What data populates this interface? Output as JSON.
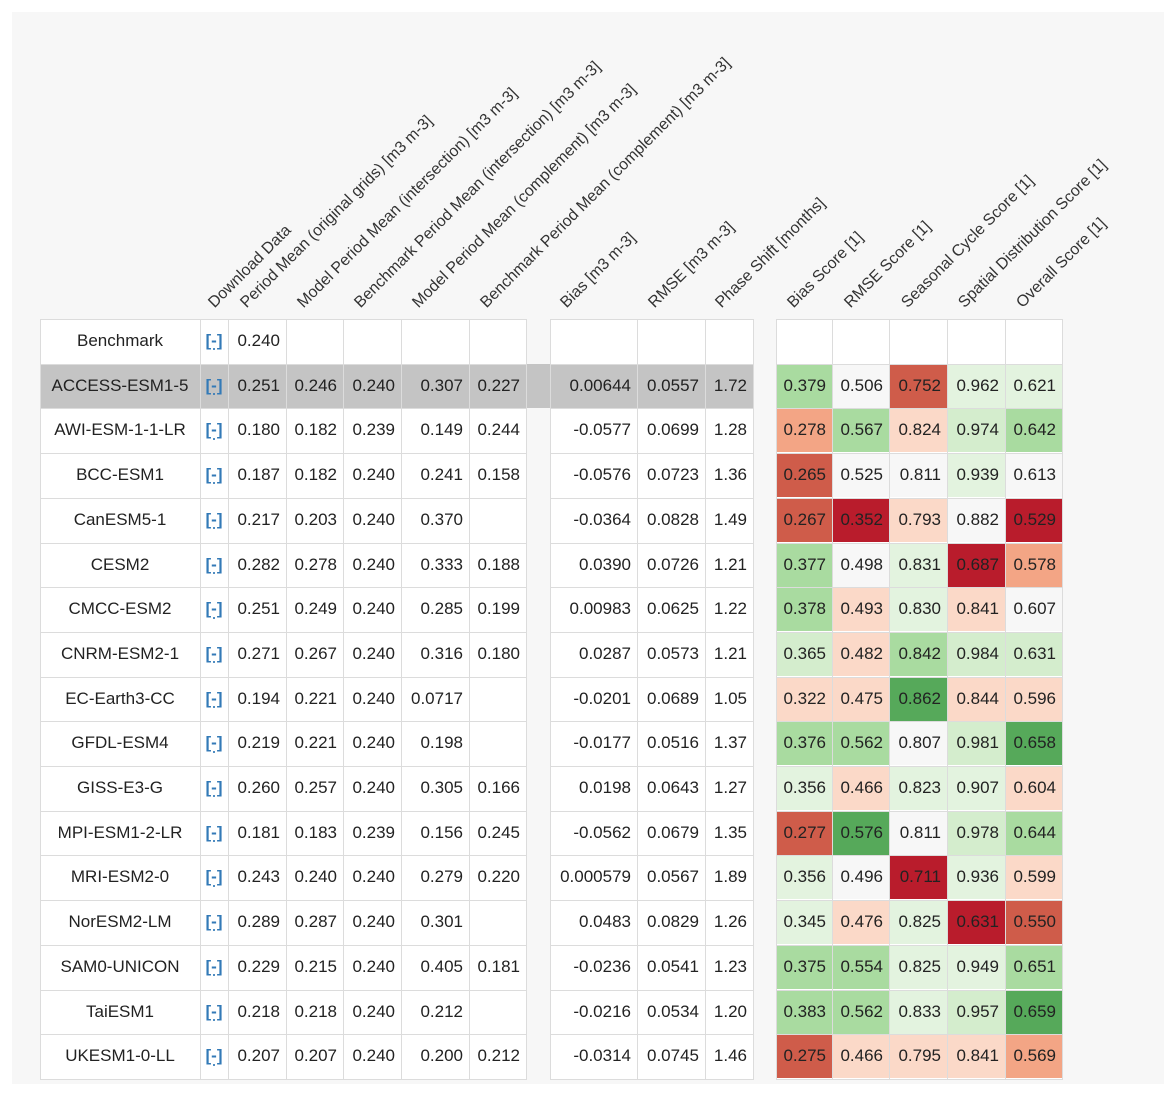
{
  "headers": [
    "Download Data",
    "Period Mean (original grids) [m3 m-3]",
    "Model Period Mean (intersection) [m3 m-3]",
    "Benchmark Period Mean (intersection) [m3 m-3]",
    "Model Period Mean (complement) [m3 m-3]",
    "Benchmark Period Mean (complement) [m3 m-3]",
    "Bias [m3 m-3]",
    "RMSE [m3 m-3]",
    "Phase Shift [months]",
    "Bias Score [1]",
    "RMSE Score [1]",
    "Seasonal Cycle Score [1]",
    "Spatial Distribution Score [1]",
    "Overall Score [1]"
  ],
  "download_label": "[-]",
  "benchmark": {
    "name": "Benchmark",
    "period_mean": "0.240"
  },
  "selected_row": 0,
  "rows": [
    {
      "model": "ACCESS-ESM1-5",
      "v": [
        "0.251",
        "0.246",
        "0.240",
        "0.307",
        "0.227",
        "0.00644",
        "0.0557",
        "1.72"
      ],
      "s": [
        "0.379",
        "0.506",
        "0.752",
        "0.962",
        "0.621"
      ]
    },
    {
      "model": "AWI-ESM-1-1-LR",
      "v": [
        "0.180",
        "0.182",
        "0.239",
        "0.149",
        "0.244",
        "-0.0577",
        "0.0699",
        "1.28"
      ],
      "s": [
        "0.278",
        "0.567",
        "0.824",
        "0.974",
        "0.642"
      ]
    },
    {
      "model": "BCC-ESM1",
      "v": [
        "0.187",
        "0.182",
        "0.240",
        "0.241",
        "0.158",
        "-0.0576",
        "0.0723",
        "1.36"
      ],
      "s": [
        "0.265",
        "0.525",
        "0.811",
        "0.939",
        "0.613"
      ]
    },
    {
      "model": "CanESM5-1",
      "v": [
        "0.217",
        "0.203",
        "0.240",
        "0.370",
        "",
        "-0.0364",
        "0.0828",
        "1.49"
      ],
      "s": [
        "0.267",
        "0.352",
        "0.793",
        "0.882",
        "0.529"
      ]
    },
    {
      "model": "CESM2",
      "v": [
        "0.282",
        "0.278",
        "0.240",
        "0.333",
        "0.188",
        "0.0390",
        "0.0726",
        "1.21"
      ],
      "s": [
        "0.377",
        "0.498",
        "0.831",
        "0.687",
        "0.578"
      ]
    },
    {
      "model": "CMCC-ESM2",
      "v": [
        "0.251",
        "0.249",
        "0.240",
        "0.285",
        "0.199",
        "0.00983",
        "0.0625",
        "1.22"
      ],
      "s": [
        "0.378",
        "0.493",
        "0.830",
        "0.841",
        "0.607"
      ]
    },
    {
      "model": "CNRM-ESM2-1",
      "v": [
        "0.271",
        "0.267",
        "0.240",
        "0.316",
        "0.180",
        "0.0287",
        "0.0573",
        "1.21"
      ],
      "s": [
        "0.365",
        "0.482",
        "0.842",
        "0.984",
        "0.631"
      ]
    },
    {
      "model": "EC-Earth3-CC",
      "v": [
        "0.194",
        "0.221",
        "0.240",
        "0.0717",
        "",
        "-0.0201",
        "0.0689",
        "1.05"
      ],
      "s": [
        "0.322",
        "0.475",
        "0.862",
        "0.844",
        "0.596"
      ]
    },
    {
      "model": "GFDL-ESM4",
      "v": [
        "0.219",
        "0.221",
        "0.240",
        "0.198",
        "",
        "-0.0177",
        "0.0516",
        "1.37"
      ],
      "s": [
        "0.376",
        "0.562",
        "0.807",
        "0.981",
        "0.658"
      ]
    },
    {
      "model": "GISS-E3-G",
      "v": [
        "0.260",
        "0.257",
        "0.240",
        "0.305",
        "0.166",
        "0.0198",
        "0.0643",
        "1.27"
      ],
      "s": [
        "0.356",
        "0.466",
        "0.823",
        "0.907",
        "0.604"
      ]
    },
    {
      "model": "MPI-ESM1-2-LR",
      "v": [
        "0.181",
        "0.183",
        "0.239",
        "0.156",
        "0.245",
        "-0.0562",
        "0.0679",
        "1.35"
      ],
      "s": [
        "0.277",
        "0.576",
        "0.811",
        "0.978",
        "0.644"
      ]
    },
    {
      "model": "MRI-ESM2-0",
      "v": [
        "0.243",
        "0.240",
        "0.240",
        "0.279",
        "0.220",
        "0.000579",
        "0.0567",
        "1.89"
      ],
      "s": [
        "0.356",
        "0.496",
        "0.711",
        "0.936",
        "0.599"
      ]
    },
    {
      "model": "NorESM2-LM",
      "v": [
        "0.289",
        "0.287",
        "0.240",
        "0.301",
        "",
        "0.0483",
        "0.0829",
        "1.26"
      ],
      "s": [
        "0.345",
        "0.476",
        "0.825",
        "0.631",
        "0.550"
      ]
    },
    {
      "model": "SAM0-UNICON",
      "v": [
        "0.229",
        "0.215",
        "0.240",
        "0.405",
        "0.181",
        "-0.0236",
        "0.0541",
        "1.23"
      ],
      "s": [
        "0.375",
        "0.554",
        "0.825",
        "0.949",
        "0.651"
      ]
    },
    {
      "model": "TaiESM1",
      "v": [
        "0.218",
        "0.218",
        "0.240",
        "0.212",
        "",
        "-0.0216",
        "0.0534",
        "1.20"
      ],
      "s": [
        "0.383",
        "0.562",
        "0.833",
        "0.957",
        "0.659"
      ]
    },
    {
      "model": "UKESM1-0-LL",
      "v": [
        "0.207",
        "0.207",
        "0.240",
        "0.200",
        "0.212",
        "-0.0314",
        "0.0745",
        "1.46"
      ],
      "s": [
        "0.275",
        "0.466",
        "0.795",
        "0.841",
        "0.569"
      ]
    }
  ],
  "score_colors": [
    [
      "#a9dba0",
      "#f7f7f7",
      "#cf5c4a",
      "#e3f3df",
      "#e3f3df"
    ],
    [
      "#f3a585",
      "#a9dba0",
      "#fbd9c8",
      "#d4edcd",
      "#a9dba0"
    ],
    [
      "#cf5c4a",
      "#f7f7f7",
      "#f7f7f7",
      "#e3f3df",
      "#f7f7f7"
    ],
    [
      "#cf5c4a",
      "#b91c2c",
      "#fbd9c8",
      "#f7f7f7",
      "#b91c2c"
    ],
    [
      "#a9dba0",
      "#f7f7f7",
      "#e3f3df",
      "#b91c2c",
      "#f3a585"
    ],
    [
      "#a9dba0",
      "#fbd9c8",
      "#e3f3df",
      "#fbd9c8",
      "#f7f7f7"
    ],
    [
      "#d4edcd",
      "#fbd9c8",
      "#a9dba0",
      "#d4edcd",
      "#d4edcd"
    ],
    [
      "#fbd9c8",
      "#fbd9c8",
      "#56a95a",
      "#fbd9c8",
      "#fbd9c8"
    ],
    [
      "#a9dba0",
      "#a9dba0",
      "#f7f7f7",
      "#d4edcd",
      "#56a95a"
    ],
    [
      "#e3f3df",
      "#fbd9c8",
      "#e3f3df",
      "#e3f3df",
      "#fbd9c8"
    ],
    [
      "#cf5c4a",
      "#56a95a",
      "#f7f7f7",
      "#d4edcd",
      "#a9dba0"
    ],
    [
      "#e3f3df",
      "#f7f7f7",
      "#b91c2c",
      "#e3f3df",
      "#fbd9c8"
    ],
    [
      "#e3f3df",
      "#fbd9c8",
      "#e3f3df",
      "#b91c2c",
      "#cf5c4a"
    ],
    [
      "#a9dba0",
      "#a9dba0",
      "#e3f3df",
      "#e3f3df",
      "#a9dba0"
    ],
    [
      "#a9dba0",
      "#a9dba0",
      "#e3f3df",
      "#d4edcd",
      "#56a95a"
    ],
    [
      "#cf5c4a",
      "#fbd9c8",
      "#fbd9c8",
      "#fbd9c8",
      "#f3a585"
    ]
  ],
  "colors": {
    "selected_row_bg": "#c4c4c4",
    "link": "#337ab7",
    "grid": "#dcdcdc"
  }
}
